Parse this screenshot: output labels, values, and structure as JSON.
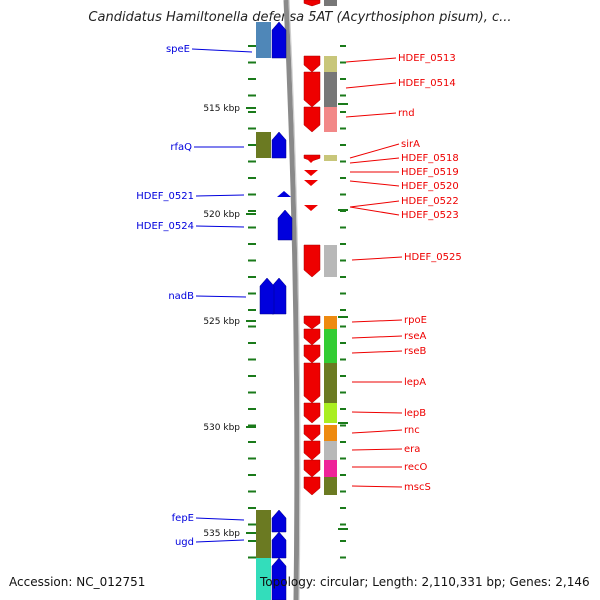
{
  "title": "Candidatus Hamiltonella defensa 5AT (Acyrthosiphon pisum), c...",
  "footer": {
    "accession": "Accession: NC_012751",
    "topology": "Topology: circular; Length: 2,110,331 bp; Genes: 2,146"
  },
  "kbp_labels": [
    "515 kbp",
    "520 kbp",
    "525 kbp",
    "530 kbp",
    "535 kbp"
  ],
  "left_labels": [
    "speE",
    "rfaQ",
    "HDEF_0521",
    "HDEF_0524",
    "nadB",
    "fepE",
    "ugd"
  ],
  "right_labels": [
    "HDEF_0513",
    "HDEF_0514",
    "rnd",
    "sirA",
    "HDEF_0518",
    "HDEF_0519",
    "HDEF_0520",
    "HDEF_0522",
    "HDEF_0523",
    "HDEF_0525",
    "rpoE",
    "rseA",
    "rseB",
    "lepA",
    "lepB",
    "rnc",
    "era",
    "recO",
    "mscS"
  ],
  "colors": {
    "forward_strand": "#ee0000",
    "reverse_strand": "#0000dd",
    "tick": "#1a7a1a",
    "backbone": "#8a8a8a",
    "cog_olive": "#6b7a22",
    "cog_steel": "#4f87b8",
    "cog_khaki": "#c8c67a",
    "cog_gray": "#777777",
    "cog_pink": "#f28888",
    "cog_light_gray": "#b8b8b8",
    "cog_orange": "#ee8a10",
    "cog_green": "#33cc33",
    "cog_lime": "#aaee22",
    "cog_magenta": "#ee2299",
    "cog_teal": "#33ddbb"
  }
}
